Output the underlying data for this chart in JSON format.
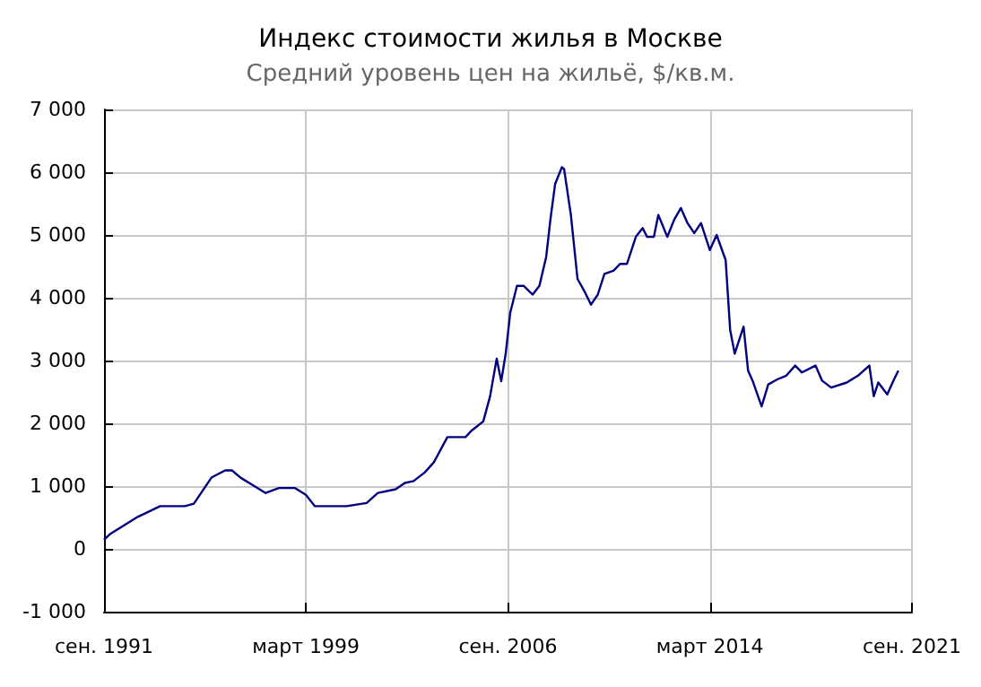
{
  "chart_data": {
    "type": "line",
    "title": "Индекс стоимости жилья в Москве",
    "subtitle": "Средний уровень цен на жильё, $/кв.м.",
    "x": [
      "1991-09",
      "1991-12",
      "1992-12",
      "1993-10",
      "1994-09",
      "1995-01",
      "1995-09",
      "1996-03",
      "1996-06",
      "1996-10",
      "1997-04",
      "1997-09",
      "1998-03",
      "1998-10",
      "1999-03",
      "1999-07",
      "2000-09",
      "2001-06",
      "2001-11",
      "2002-07",
      "2002-11",
      "2003-03",
      "2003-08",
      "2003-12",
      "2004-06",
      "2005-02",
      "2005-05",
      "2005-10",
      "2006-01",
      "2006-04",
      "2006-06",
      "2006-08",
      "2006-10",
      "2007-01",
      "2007-04",
      "2007-08",
      "2007-11",
      "2008-02",
      "2008-04",
      "2008-06",
      "2008-09",
      "2008-10",
      "2009-01",
      "2009-04",
      "2009-07",
      "2009-10",
      "2010-01",
      "2010-04",
      "2010-08",
      "2010-11",
      "2011-02",
      "2011-06",
      "2011-09",
      "2011-11",
      "2012-02",
      "2012-04",
      "2012-08",
      "2012-11",
      "2013-02",
      "2013-05",
      "2013-08",
      "2013-11",
      "2014-03",
      "2014-06",
      "2014-10",
      "2014-12",
      "2015-02",
      "2015-06",
      "2015-08",
      "2015-10",
      "2016-02",
      "2016-05",
      "2016-09",
      "2017-01",
      "2017-05",
      "2017-08",
      "2018-02",
      "2018-05",
      "2018-09",
      "2019-04",
      "2019-09",
      "2020-02",
      "2020-04",
      "2020-06",
      "2020-10",
      "2021-01",
      "2021-03"
    ],
    "series": [
      {
        "color": "#000080",
        "values": [
          143,
          243,
          510,
          680,
          680,
          720,
          1140,
          1250,
          1250,
          1130,
          1000,
          890,
          970,
          970,
          860,
          680,
          680,
          730,
          890,
          950,
          1050,
          1080,
          1220,
          1380,
          1780,
          1780,
          1890,
          2030,
          2430,
          3030,
          2670,
          3110,
          3760,
          4190,
          4190,
          4050,
          4190,
          4650,
          5270,
          5810,
          6080,
          6050,
          5320,
          4300,
          4110,
          3890,
          4050,
          4380,
          4430,
          4540,
          4540,
          4970,
          5110,
          4970,
          4970,
          5320,
          4970,
          5240,
          5430,
          5190,
          5030,
          5190,
          4760,
          5000,
          4600,
          3490,
          3110,
          3540,
          2840,
          2680,
          2270,
          2620,
          2700,
          2760,
          2920,
          2810,
          2920,
          2680,
          2570,
          2650,
          2760,
          2920,
          2430,
          2650,
          2460,
          2700,
          2840
        ]
      }
    ],
    "xlim": [
      "1991-09",
      "2021-09"
    ],
    "xticks": [
      {
        "value": "1991-09",
        "label": "сен. 1991"
      },
      {
        "value": "1999-03",
        "label": "март 1999"
      },
      {
        "value": "2006-09",
        "label": "сен. 2006"
      },
      {
        "value": "2014-03",
        "label": "март 2014"
      },
      {
        "value": "2021-09",
        "label": "сен. 2021"
      }
    ],
    "ylim": [
      -1000,
      7000
    ],
    "yticks": [
      {
        "value": -1000,
        "label": "-1 000"
      },
      0,
      {
        "value": 1000,
        "label": "1 000"
      },
      {
        "value": 2000,
        "label": "2 000"
      },
      {
        "value": 3000,
        "label": "3 000"
      },
      {
        "value": 4000,
        "label": "4 000"
      },
      {
        "value": 5000,
        "label": "5 000"
      },
      {
        "value": 6000,
        "label": "6 000"
      },
      {
        "value": 7000,
        "label": "7 000"
      }
    ],
    "grid": true,
    "marker": "none",
    "line_style": "solid"
  }
}
